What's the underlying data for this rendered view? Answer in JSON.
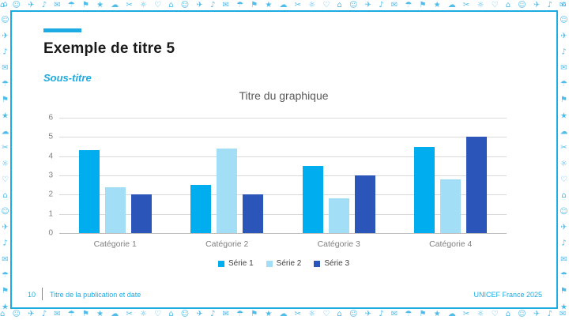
{
  "slide_title": "Exemple de titre 5",
  "slide_subtitle": "Sous-titre",
  "footer": {
    "page_number": "10",
    "publication_title": "Titre de la publication et date",
    "credit": "UNICEF France 2025"
  },
  "colors": {
    "accent": "#1CABE2",
    "title_text": "#1A1A1A",
    "chart_title_text": "#595959",
    "axis_text": "#7F7F7F",
    "gridline": "#D9D9D9",
    "doodle_border": "#3EB5E8"
  },
  "border": {
    "doodle_glyphs": "⌂ ☺ ✈ ♪ ✉ ☂ ⚑ ★ ☁ ✂ ☼ ♡ "
  },
  "chart_data": {
    "type": "bar",
    "title": "Titre du graphique",
    "categories": [
      "Catégorie 1",
      "Catégorie 2",
      "Catégorie 3",
      "Catégorie 4"
    ],
    "series": [
      {
        "name": "Série 1",
        "color": "#00AEEF",
        "values": [
          4.3,
          2.5,
          3.5,
          4.5
        ]
      },
      {
        "name": "Série 2",
        "color": "#A3DEF7",
        "values": [
          2.4,
          4.4,
          1.8,
          2.8
        ]
      },
      {
        "name": "Série 3",
        "color": "#2B55B9",
        "values": [
          2.0,
          2.0,
          3.0,
          5.0
        ]
      }
    ],
    "xlabel": "",
    "ylabel": "",
    "ylim": [
      0,
      6
    ],
    "yticks": [
      0,
      1,
      2,
      3,
      4,
      5,
      6
    ],
    "grid": true,
    "legend_position": "bottom"
  }
}
